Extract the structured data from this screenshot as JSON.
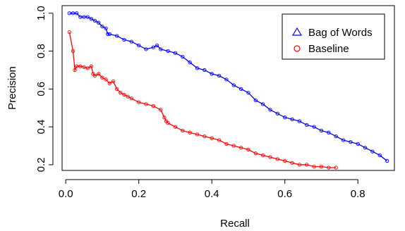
{
  "chart_data": {
    "type": "line",
    "xlabel": "Recall",
    "ylabel": "Precision",
    "xlim": [
      -0.01,
      0.9
    ],
    "ylim": [
      0.17,
      1.04
    ],
    "x_ticks": [
      0.0,
      0.2,
      0.4,
      0.6,
      0.8
    ],
    "x_tick_labels": [
      "0.0",
      "0.2",
      "0.4",
      "0.6",
      "0.8"
    ],
    "y_ticks": [
      0.2,
      0.4,
      0.6,
      0.8,
      1.0
    ],
    "y_tick_labels": [
      "0.2",
      "0.4",
      "0.6",
      "0.8",
      "1.0"
    ],
    "grid": false,
    "legend_position": "top-right",
    "series": [
      {
        "name": "Bag of Words",
        "color": "#0000ff",
        "marker": "circle",
        "legend_marker": "triangle",
        "x": [
          0.01,
          0.02,
          0.03,
          0.04,
          0.05,
          0.06,
          0.07,
          0.08,
          0.09,
          0.1,
          0.11,
          0.115,
          0.12,
          0.14,
          0.16,
          0.18,
          0.2,
          0.22,
          0.24,
          0.25,
          0.26,
          0.28,
          0.3,
          0.32,
          0.34,
          0.36,
          0.38,
          0.4,
          0.42,
          0.44,
          0.46,
          0.48,
          0.5,
          0.52,
          0.54,
          0.56,
          0.58,
          0.6,
          0.62,
          0.64,
          0.66,
          0.68,
          0.7,
          0.72,
          0.74,
          0.76,
          0.78,
          0.8,
          0.82,
          0.84,
          0.86,
          0.88
        ],
        "y": [
          1.0,
          1.0,
          1.0,
          0.98,
          0.98,
          0.98,
          0.97,
          0.96,
          0.95,
          0.93,
          0.92,
          0.89,
          0.89,
          0.88,
          0.86,
          0.85,
          0.83,
          0.81,
          0.82,
          0.83,
          0.81,
          0.8,
          0.79,
          0.77,
          0.74,
          0.71,
          0.7,
          0.68,
          0.67,
          0.65,
          0.62,
          0.6,
          0.58,
          0.54,
          0.52,
          0.49,
          0.47,
          0.45,
          0.44,
          0.43,
          0.41,
          0.4,
          0.38,
          0.37,
          0.35,
          0.33,
          0.32,
          0.31,
          0.29,
          0.27,
          0.25,
          0.22
        ]
      },
      {
        "name": "Baseline",
        "color": "#ff0000",
        "marker": "circle",
        "legend_marker": "circle",
        "x": [
          0.01,
          0.02,
          0.025,
          0.03,
          0.04,
          0.05,
          0.06,
          0.07,
          0.075,
          0.08,
          0.09,
          0.1,
          0.11,
          0.12,
          0.13,
          0.14,
          0.15,
          0.16,
          0.17,
          0.18,
          0.2,
          0.22,
          0.24,
          0.26,
          0.27,
          0.275,
          0.28,
          0.3,
          0.32,
          0.34,
          0.36,
          0.38,
          0.4,
          0.42,
          0.44,
          0.46,
          0.48,
          0.5,
          0.52,
          0.54,
          0.56,
          0.58,
          0.6,
          0.62,
          0.64,
          0.66,
          0.68,
          0.7,
          0.72,
          0.74
        ],
        "y": [
          0.9,
          0.8,
          0.7,
          0.72,
          0.72,
          0.715,
          0.71,
          0.72,
          0.68,
          0.67,
          0.68,
          0.66,
          0.65,
          0.63,
          0.64,
          0.6,
          0.58,
          0.57,
          0.56,
          0.55,
          0.53,
          0.52,
          0.51,
          0.49,
          0.45,
          0.43,
          0.42,
          0.4,
          0.38,
          0.37,
          0.36,
          0.35,
          0.34,
          0.33,
          0.31,
          0.3,
          0.29,
          0.28,
          0.26,
          0.25,
          0.24,
          0.23,
          0.22,
          0.21,
          0.2,
          0.2,
          0.19,
          0.19,
          0.185,
          0.185
        ]
      }
    ]
  }
}
